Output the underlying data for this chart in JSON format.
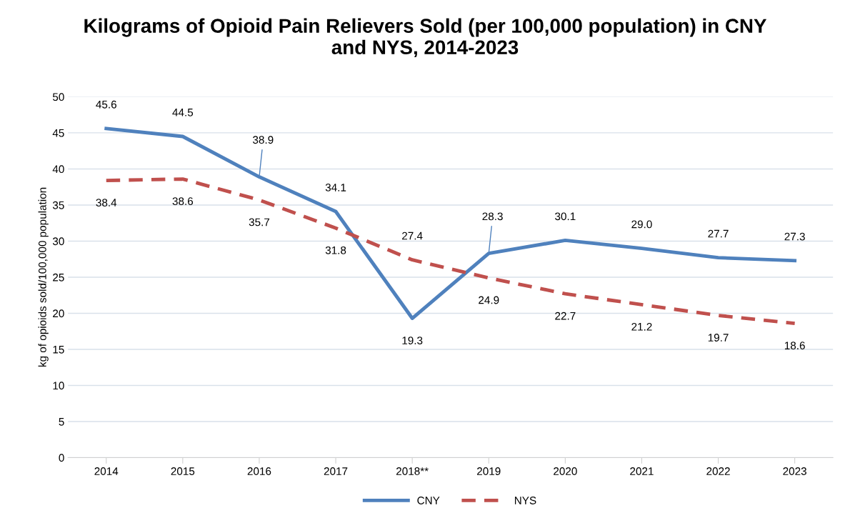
{
  "chart_data": {
    "type": "line",
    "title": "Kilograms of Opioid Pain Relievers Sold (per 100,000 population) in CNY\nand NYS, 2014-2023",
    "ylabel": "kg of opioids sold/100,000 population",
    "categories": [
      "2014",
      "2015",
      "2016",
      "2017",
      "2018**",
      "2019",
      "2020",
      "2021",
      "2022",
      "2023"
    ],
    "series": [
      {
        "name": "CNY",
        "color": "#4f81bd",
        "line_style": "solid",
        "values": [
          45.6,
          44.5,
          38.9,
          34.1,
          19.3,
          28.3,
          30.1,
          29.0,
          27.7,
          27.3
        ],
        "value_labels": [
          "45.6",
          "44.5",
          "38.9",
          "34.1",
          "19.3",
          "28.3",
          "30.1",
          "29.0",
          "27.7",
          "27.3"
        ]
      },
      {
        "name": "NYS",
        "color": "#c0504d",
        "line_style": "dashed",
        "values": [
          38.4,
          38.6,
          35.7,
          31.8,
          27.4,
          24.9,
          22.7,
          21.2,
          19.7,
          18.6
        ],
        "value_labels": [
          "38.4",
          "38.6",
          "35.7",
          "31.8",
          "27.4",
          "24.9",
          "22.7",
          "21.2",
          "19.7",
          "18.6"
        ]
      }
    ],
    "ylim": [
      0,
      50
    ],
    "yticks": [
      0,
      5,
      10,
      15,
      20,
      25,
      30,
      35,
      40,
      45,
      50
    ],
    "grid": "y",
    "legend": "bottom",
    "marker": "none"
  }
}
